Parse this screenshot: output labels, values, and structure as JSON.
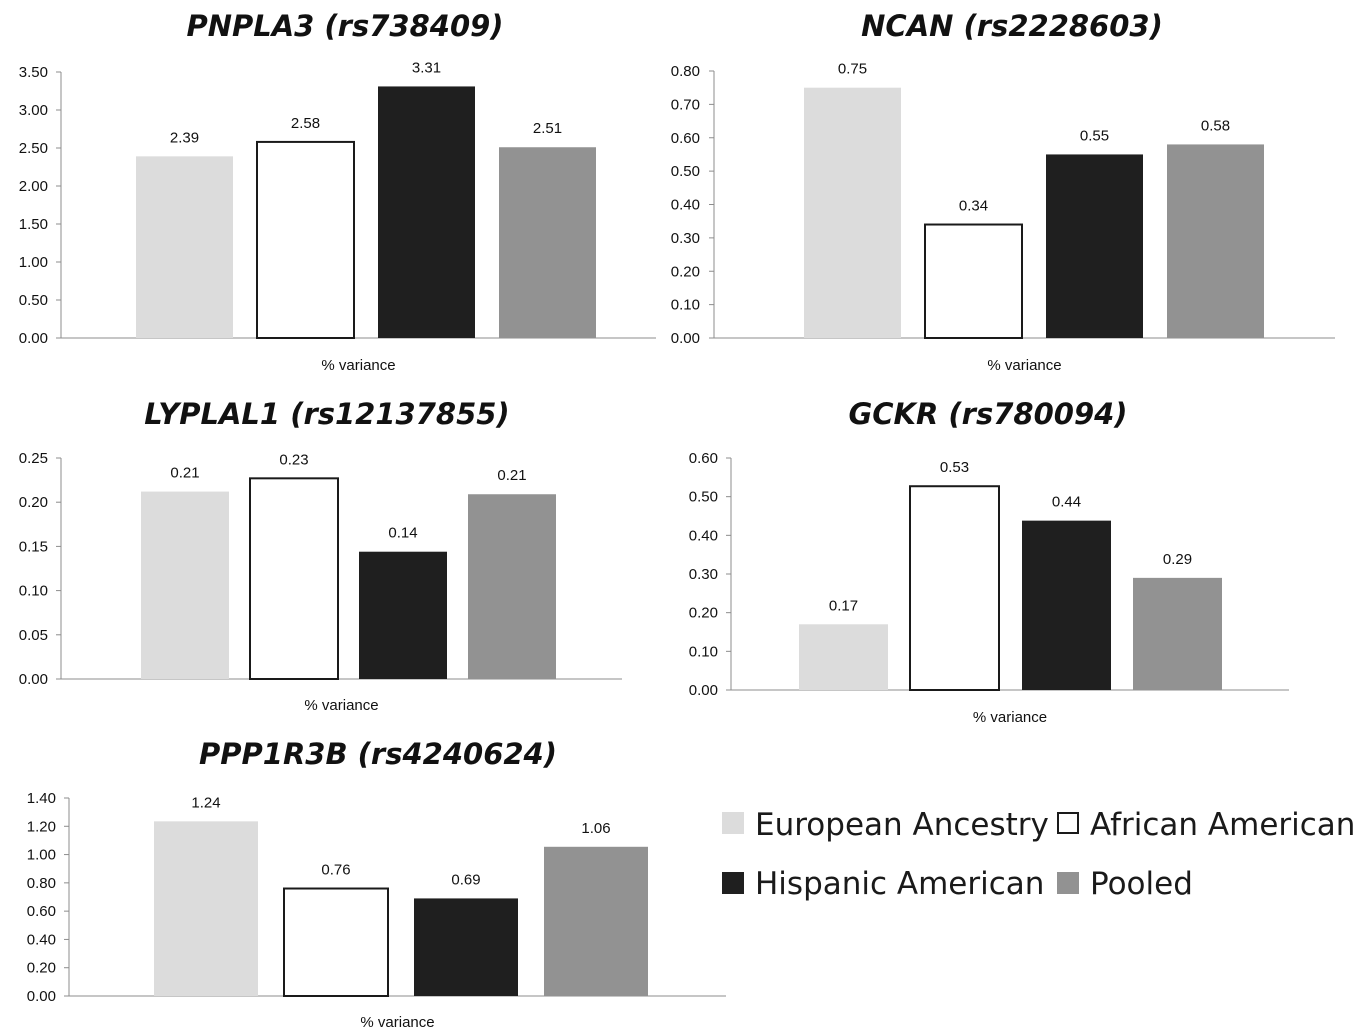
{
  "chart_data": [
    {
      "type": "bar",
      "title": "PNPLA3 (rs738409)",
      "xlabel": "% variance",
      "ylabel": "",
      "ylim": [
        0,
        3.5
      ],
      "yticks": [
        "0.00",
        "0.50",
        "1.00",
        "1.50",
        "2.00",
        "2.50",
        "3.00",
        "3.50"
      ],
      "series": [
        {
          "name": "European Ancestry",
          "values": [
            2.39
          ],
          "labels": [
            "2.39"
          ]
        },
        {
          "name": "African American",
          "values": [
            2.58
          ],
          "labels": [
            "2.58"
          ]
        },
        {
          "name": "Hispanic American",
          "values": [
            3.31
          ],
          "labels": [
            "3.31"
          ]
        },
        {
          "name": "Pooled",
          "values": [
            2.51
          ],
          "labels": [
            "2.51"
          ]
        }
      ]
    },
    {
      "type": "bar",
      "title": "NCAN (rs2228603)",
      "xlabel": "% variance",
      "ylabel": "",
      "ylim": [
        0,
        0.8
      ],
      "yticks": [
        "0.00",
        "0.10",
        "0.20",
        "0.30",
        "0.40",
        "0.50",
        "0.60",
        "0.70",
        "0.80"
      ],
      "series": [
        {
          "name": "European Ancestry",
          "values": [
            0.75
          ],
          "labels": [
            "0.75"
          ]
        },
        {
          "name": "African American",
          "values": [
            0.34
          ],
          "labels": [
            "0.34"
          ]
        },
        {
          "name": "Hispanic American",
          "values": [
            0.55
          ],
          "labels": [
            "0.55"
          ]
        },
        {
          "name": "Pooled",
          "values": [
            0.58
          ],
          "labels": [
            "0.58"
          ]
        }
      ]
    },
    {
      "type": "bar",
      "title": "LYPLAL1 (rs12137855)",
      "xlabel": "% variance",
      "ylabel": "",
      "ylim": [
        0,
        0.25
      ],
      "yticks": [
        "0.00",
        "0.05",
        "0.10",
        "0.15",
        "0.20",
        "0.25"
      ],
      "series": [
        {
          "name": "European Ancestry",
          "values": [
            0.212
          ],
          "labels": [
            "0.21"
          ]
        },
        {
          "name": "African American",
          "values": [
            0.227
          ],
          "labels": [
            "0.23"
          ]
        },
        {
          "name": "Hispanic American",
          "values": [
            0.144
          ],
          "labels": [
            "0.14"
          ]
        },
        {
          "name": "Pooled",
          "values": [
            0.209
          ],
          "labels": [
            "0.21"
          ]
        }
      ]
    },
    {
      "type": "bar",
      "title": "GCKR (rs780094)",
      "xlabel": "% variance",
      "ylabel": "",
      "ylim": [
        0,
        0.6
      ],
      "yticks": [
        "0.00",
        "0.10",
        "0.20",
        "0.30",
        "0.40",
        "0.50",
        "0.60"
      ],
      "series": [
        {
          "name": "European Ancestry",
          "values": [
            0.17
          ],
          "labels": [
            "0.17"
          ]
        },
        {
          "name": "African American",
          "values": [
            0.527
          ],
          "labels": [
            "0.53"
          ]
        },
        {
          "name": "Hispanic American",
          "values": [
            0.438
          ],
          "labels": [
            "0.44"
          ]
        },
        {
          "name": "Pooled",
          "values": [
            0.29
          ],
          "labels": [
            "0.29"
          ]
        }
      ]
    },
    {
      "type": "bar",
      "title": "PPP1R3B (rs4240624)",
      "xlabel": "% variance",
      "ylabel": "",
      "ylim": [
        0,
        1.4
      ],
      "yticks": [
        "0.00",
        "0.20",
        "0.40",
        "0.60",
        "0.80",
        "1.00",
        "1.20",
        "1.40"
      ],
      "series": [
        {
          "name": "European Ancestry",
          "values": [
            1.235
          ],
          "labels": [
            "1.24"
          ]
        },
        {
          "name": "African American",
          "values": [
            0.76
          ],
          "labels": [
            "0.76"
          ]
        },
        {
          "name": "Hispanic American",
          "values": [
            0.69
          ],
          "labels": [
            "0.69"
          ]
        },
        {
          "name": "Pooled",
          "values": [
            1.055
          ],
          "labels": [
            "1.06"
          ]
        }
      ]
    }
  ],
  "legend": {
    "placement": "bottom-right",
    "items": [
      {
        "name": "European Ancestry",
        "fill": "#dcdcdc",
        "stroke": "none"
      },
      {
        "name": "African American",
        "fill": "#ffffff",
        "stroke": "#1a1a1a"
      },
      {
        "name": "Hispanic American",
        "fill": "#1f1f1f",
        "stroke": "none"
      },
      {
        "name": "Pooled",
        "fill": "#929292",
        "stroke": "none"
      }
    ]
  }
}
